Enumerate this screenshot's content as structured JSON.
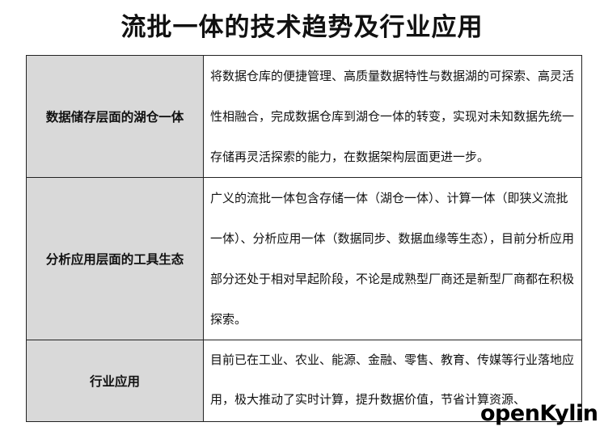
{
  "title": "流批一体的技术趋势及行业应用",
  "rows": [
    {
      "heading": "数据储存层面的湖仓一体",
      "content": "将数据仓库的便捷管理、高质量数据特性与数据湖的可探索、高灵活性相融合，完成数据仓库到湖仓一体的转变，实现对未知数据先统一存储再灵活探索的能力，在数据架构层面更进一步。"
    },
    {
      "heading": "分析应用层面的工具生态",
      "content": "广义的流批一体包含存储一体（湖仓一体）、计算一体（即狭义流批一体）、分析应用一体（数据同步、数据血缘等生态），目前分析应用部分还处于相对早起阶段，不论是成熟型厂商还是新型厂商都在积极探索。"
    },
    {
      "heading": "行业应用",
      "content": "目前已在工业、农业、能源、金融、零售、教育、传媒等行业落地应用，极大推动了实时计算，提升数据价值，节省计算资源、"
    }
  ],
  "watermark": "openKylin"
}
